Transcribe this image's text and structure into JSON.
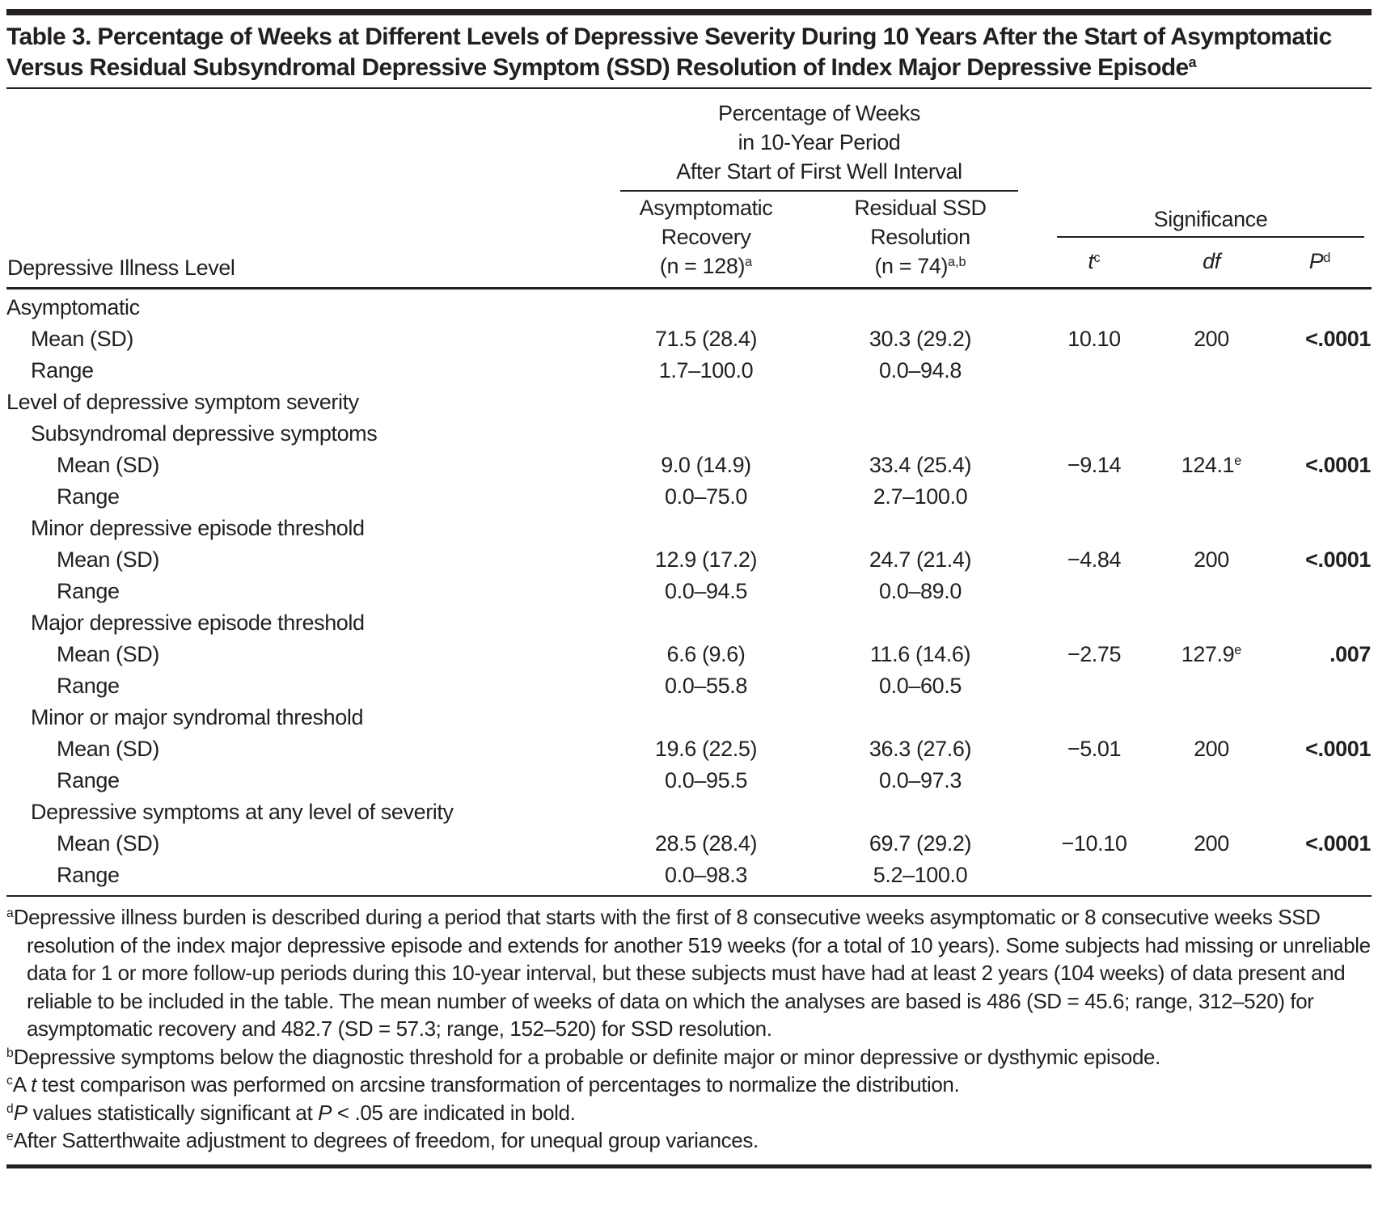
{
  "meta": {
    "ink_color": "#231f20",
    "background_color": "#ffffff"
  },
  "title": {
    "text": "Table 3. Percentage of Weeks at Different Levels of Depressive Severity During 10 Years After the Start of Asymptomatic Versus Residual Subsyndromal Depressive Symptom (SSD) Resolution of Index Major Depressive Episode",
    "sup": "a"
  },
  "header": {
    "row_label": "Depressive Illness Level",
    "spanner_pct_lines": [
      "Percentage of Weeks",
      "in 10-Year Period",
      "After Start of First Well Interval"
    ],
    "col_asym": {
      "line1": "Asymptomatic",
      "line2": "Recovery",
      "line3": "(n = 128)",
      "sup": "a"
    },
    "col_ssd": {
      "line1": "Residual SSD",
      "line2": "Resolution",
      "line3": "(n = 74)",
      "sup": "a,b"
    },
    "spanner_sig": "Significance",
    "col_t": {
      "label": "t",
      "sup": "c"
    },
    "col_df": {
      "label": "df",
      "sup": ""
    },
    "col_p": {
      "label": "P",
      "sup": "d"
    }
  },
  "rows": [
    {
      "label": "Asymptomatic",
      "indent": 0,
      "asym": "",
      "ssd": "",
      "t": "",
      "df": "",
      "df_sup": "",
      "p": "",
      "p_bold": false
    },
    {
      "label": "Mean (SD)",
      "indent": 1,
      "asym": "71.5 (28.4)",
      "ssd": "30.3 (29.2)",
      "t": "10.10",
      "df": "200",
      "df_sup": "",
      "p": "<.0001",
      "p_bold": true
    },
    {
      "label": "Range",
      "indent": 1,
      "asym": "1.7–100.0",
      "ssd": "0.0–94.8",
      "t": "",
      "df": "",
      "df_sup": "",
      "p": "",
      "p_bold": false
    },
    {
      "label": "Level of depressive symptom severity",
      "indent": 0,
      "asym": "",
      "ssd": "",
      "t": "",
      "df": "",
      "df_sup": "",
      "p": "",
      "p_bold": false
    },
    {
      "label": "Subsyndromal depressive symptoms",
      "indent": 1,
      "asym": "",
      "ssd": "",
      "t": "",
      "df": "",
      "df_sup": "",
      "p": "",
      "p_bold": false
    },
    {
      "label": "Mean (SD)",
      "indent": 2,
      "asym": "9.0 (14.9)",
      "ssd": "33.4 (25.4)",
      "t": "−9.14",
      "df": "124.1",
      "df_sup": "e",
      "p": "<.0001",
      "p_bold": true
    },
    {
      "label": "Range",
      "indent": 2,
      "asym": "0.0–75.0",
      "ssd": "2.7–100.0",
      "t": "",
      "df": "",
      "df_sup": "",
      "p": "",
      "p_bold": false
    },
    {
      "label": "Minor depressive episode threshold",
      "indent": 1,
      "asym": "",
      "ssd": "",
      "t": "",
      "df": "",
      "df_sup": "",
      "p": "",
      "p_bold": false
    },
    {
      "label": "Mean (SD)",
      "indent": 2,
      "asym": "12.9 (17.2)",
      "ssd": "24.7 (21.4)",
      "t": "−4.84",
      "df": "200",
      "df_sup": "",
      "p": "<.0001",
      "p_bold": true
    },
    {
      "label": "Range",
      "indent": 2,
      "asym": "0.0–94.5",
      "ssd": "0.0–89.0",
      "t": "",
      "df": "",
      "df_sup": "",
      "p": "",
      "p_bold": false
    },
    {
      "label": "Major depressive episode threshold",
      "indent": 1,
      "asym": "",
      "ssd": "",
      "t": "",
      "df": "",
      "df_sup": "",
      "p": "",
      "p_bold": false
    },
    {
      "label": "Mean (SD)",
      "indent": 2,
      "asym": "6.6 (9.6)",
      "ssd": "11.6 (14.6)",
      "t": "−2.75",
      "df": "127.9",
      "df_sup": "e",
      "p": ".007",
      "p_bold": true
    },
    {
      "label": "Range",
      "indent": 2,
      "asym": "0.0–55.8",
      "ssd": "0.0–60.5",
      "t": "",
      "df": "",
      "df_sup": "",
      "p": "",
      "p_bold": false
    },
    {
      "label": "Minor or major syndromal threshold",
      "indent": 1,
      "asym": "",
      "ssd": "",
      "t": "",
      "df": "",
      "df_sup": "",
      "p": "",
      "p_bold": false
    },
    {
      "label": "Mean (SD)",
      "indent": 2,
      "asym": "19.6 (22.5)",
      "ssd": "36.3 (27.6)",
      "t": "−5.01",
      "df": "200",
      "df_sup": "",
      "p": "<.0001",
      "p_bold": true
    },
    {
      "label": "Range",
      "indent": 2,
      "asym": "0.0–95.5",
      "ssd": "0.0–97.3",
      "t": "",
      "df": "",
      "df_sup": "",
      "p": "",
      "p_bold": false
    },
    {
      "label": "Depressive symptoms at any level of severity",
      "indent": 1,
      "asym": "",
      "ssd": "",
      "t": "",
      "df": "",
      "df_sup": "",
      "p": "",
      "p_bold": false
    },
    {
      "label": "Mean (SD)",
      "indent": 2,
      "asym": "28.5 (28.4)",
      "ssd": "69.7 (29.2)",
      "t": "−10.10",
      "df": "200",
      "df_sup": "",
      "p": "<.0001",
      "p_bold": true
    },
    {
      "label": "Range",
      "indent": 2,
      "asym": "0.0–98.3",
      "ssd": "5.2–100.0",
      "t": "",
      "df": "",
      "df_sup": "",
      "p": "",
      "p_bold": false
    }
  ],
  "footnotes": [
    {
      "sup": "a",
      "parts": [
        {
          "t": "Depressive illness burden is described during a period that starts with the first of 8 consecutive weeks asymptomatic or 8 consecutive weeks SSD resolution of the index major depressive episode and extends for another 519 weeks (for a total of 10 years). Some subjects had missing or unreliable data for 1 or more follow-up periods during this 10-year interval, but these subjects must have had at least 2 years (104 weeks) of data present and reliable to be included in the table. The mean number of weeks of data on which the analyses are based is 486 (SD = 45.6; range, 312–520) for asymptomatic recovery and 482.7 (SD = 57.3; range, 152–520) for SSD resolution."
        }
      ]
    },
    {
      "sup": "b",
      "parts": [
        {
          "t": "Depressive symptoms below the diagnostic threshold for a probable or definite major or minor depressive or dysthymic episode."
        }
      ]
    },
    {
      "sup": "c",
      "parts": [
        {
          "t": "A "
        },
        {
          "t": "t",
          "i": true
        },
        {
          "t": " test comparison was performed on arcsine transformation of percentages to normalize the distribution."
        }
      ]
    },
    {
      "sup": "d",
      "parts": [
        {
          "t": "P",
          "i": true
        },
        {
          "t": " values statistically significant at "
        },
        {
          "t": "P",
          "i": true
        },
        {
          "t": " < .05 are indicated in bold."
        }
      ]
    },
    {
      "sup": "e",
      "parts": [
        {
          "t": "After Satterthwaite adjustment to degrees of freedom, for unequal group variances."
        }
      ]
    }
  ]
}
